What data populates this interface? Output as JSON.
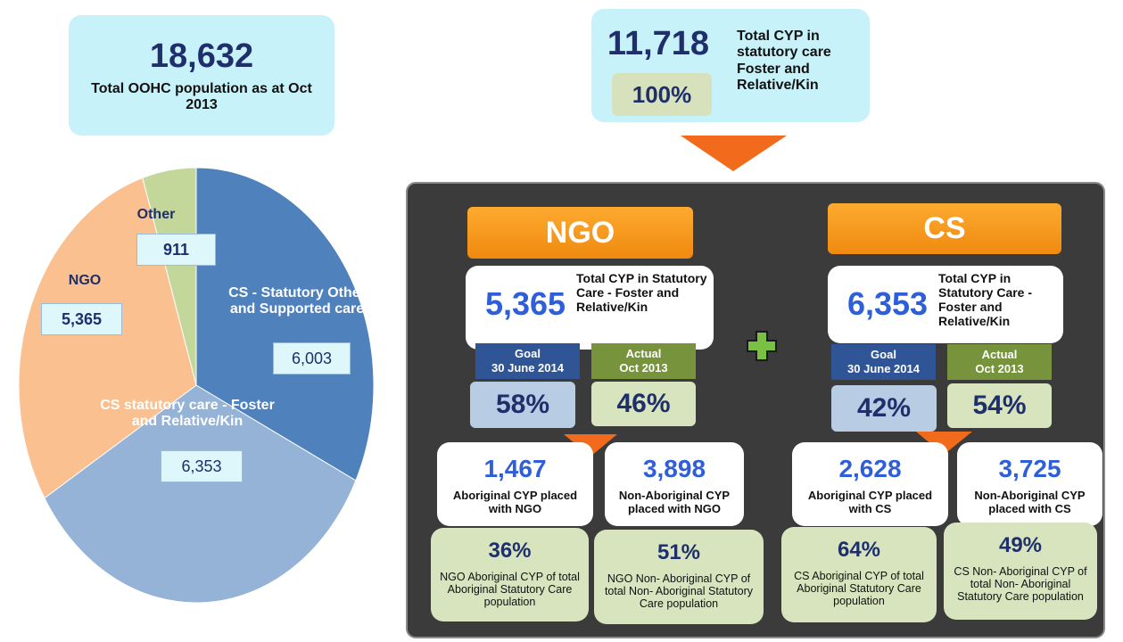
{
  "chart_data": {
    "type": "pie",
    "categories": [
      "CS - Statutory Other and Supported care",
      "CS statutory care - Foster and Relative/Kin",
      "NGO",
      "Other"
    ],
    "values": [
      6003,
      6353,
      5365,
      911
    ],
    "value_labels": [
      "6,003",
      "6,353",
      "5,365",
      "911"
    ],
    "colors": [
      "#4f81bd",
      "#95b3d7",
      "#fac090",
      "#c4d79b"
    ]
  },
  "total": {
    "value": "18,632",
    "label": "Total OOHC population as at Oct 2013"
  },
  "statutory": {
    "value": "11,718",
    "percent": "100%",
    "label": "Total CYP in statutory care Foster and Relative/Kin"
  },
  "panels": [
    {
      "title": "NGO",
      "total": "5,365",
      "total_label": "Total CYP in Statutory Care - Foster and Relative/Kin",
      "goal_label": [
        "Goal",
        "30 June 2014"
      ],
      "goal": "58%",
      "actual_label": [
        "Actual",
        "Oct 2013"
      ],
      "actual": "46%",
      "groups": [
        {
          "value": "1,467",
          "label": "Aboriginal CYP placed with NGO",
          "percent": "36%",
          "percent_label": "NGO Aboriginal CYP of total Aboriginal Statutory Care population"
        },
        {
          "value": "3,898",
          "label": "Non-Aboriginal CYP placed with NGO",
          "percent": "51%",
          "percent_label": "NGO Non- Aboriginal CYP of total Non- Aboriginal Statutory Care population"
        }
      ]
    },
    {
      "title": "CS",
      "total": "6,353",
      "total_label": "Total CYP in Statutory Care - Foster and Relative/Kin",
      "goal_label": [
        "Goal",
        "30 June 2014"
      ],
      "goal": "42%",
      "actual_label": [
        "Actual",
        "Oct 2013"
      ],
      "actual": "54%",
      "groups": [
        {
          "value": "2,628",
          "label": "Aboriginal CYP placed with CS",
          "percent": "64%",
          "percent_label": "CS Aboriginal CYP of total Aboriginal Statutory Care population"
        },
        {
          "value": "3,725",
          "label": "Non-Aboriginal CYP placed with CS",
          "percent": "49%",
          "percent_label": "CS Non- Aboriginal CYP of total Non- Aboriginal Statutory Care population"
        }
      ]
    }
  ]
}
